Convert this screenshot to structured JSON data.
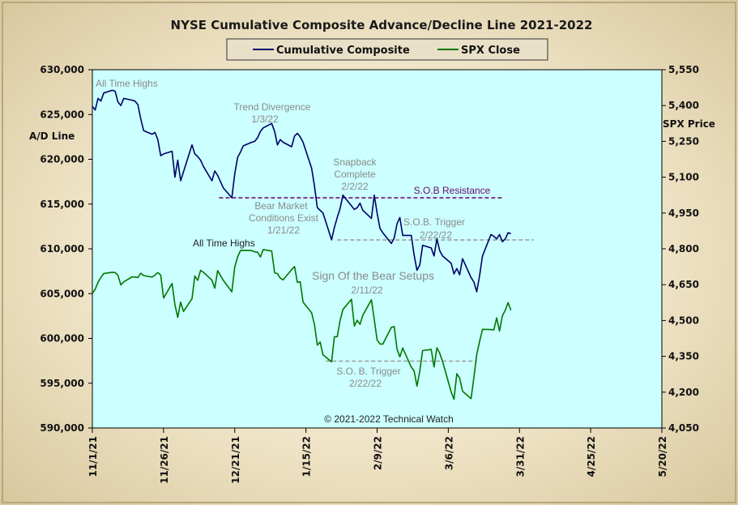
{
  "colors": {
    "plot_bg": "#ccffff",
    "composite": "#000066",
    "spx": "#007700",
    "resistance": "#660066",
    "trigger": "#999999"
  },
  "chart_data": {
    "type": "line",
    "title": "NYSE Cumulative  Composite Advance/Decline  Line 2021-2022",
    "ylabel_left": "A/D Line",
    "ylabel_right": "SPX Price",
    "y_left_range": [
      590000,
      630000
    ],
    "y_left_ticks": [
      "590,000",
      "595,000",
      "600,000",
      "605,000",
      "610,000",
      "615,000",
      "620,000",
      "625,000",
      "630,000"
    ],
    "y_right_range": [
      4050,
      5550
    ],
    "y_right_ticks": [
      "4,050",
      "4,200",
      "4,350",
      "4,500",
      "4,650",
      "4,800",
      "4,950",
      "5,100",
      "5,250",
      "5,400",
      "5,550"
    ],
    "x_tick_labels": [
      "11/1/21",
      "11/26/21",
      "12/21/21",
      "1/15/22",
      "2/9/22",
      "3/6/22",
      "3/31/22",
      "4/25/22",
      "5/20/22"
    ],
    "x_tick_days": [
      0,
      25,
      50,
      75,
      100,
      125,
      150,
      175,
      200
    ],
    "x_range_days": [
      0,
      200
    ],
    "legend": [
      "Cumulative Composite",
      "SPX Close"
    ],
    "legend_placement": "top-center",
    "grid": false,
    "copyright": "© 2021-2022  Technical Watch",
    "series": [
      {
        "name": "Cumulative Composite",
        "color": "#000066",
        "axis": "left",
        "points": [
          [
            0,
            625.9
          ],
          [
            1,
            625.5
          ],
          [
            2,
            626.8
          ],
          [
            3,
            626.5
          ],
          [
            4,
            627.4
          ],
          [
            7,
            627.7
          ],
          [
            8,
            627.6
          ],
          [
            9,
            626.4
          ],
          [
            10,
            626.0
          ],
          [
            11,
            626.8
          ],
          [
            14,
            626.6
          ],
          [
            15,
            626.5
          ],
          [
            16,
            626.1
          ],
          [
            17,
            624.5
          ],
          [
            18,
            623.2
          ],
          [
            21,
            622.8
          ],
          [
            22,
            623.0
          ],
          [
            23,
            622.2
          ],
          [
            24,
            620.4
          ],
          [
            25,
            620.6
          ],
          [
            28,
            620.9
          ],
          [
            29,
            618.0
          ],
          [
            30,
            619.9
          ],
          [
            31,
            617.6
          ],
          [
            32,
            618.6
          ],
          [
            35,
            621.6
          ],
          [
            36,
            620.6
          ],
          [
            37,
            620.3
          ],
          [
            38,
            619.9
          ],
          [
            39,
            619.2
          ],
          [
            42,
            617.6
          ],
          [
            43,
            618.7
          ],
          [
            44,
            618.2
          ],
          [
            45,
            617.5
          ],
          [
            46,
            616.8
          ],
          [
            49,
            615.7
          ],
          [
            50,
            618.4
          ],
          [
            51,
            620.2
          ],
          [
            52,
            620.8
          ],
          [
            53,
            621.5
          ],
          [
            56,
            621.9
          ],
          [
            57,
            622.0
          ],
          [
            58,
            622.4
          ],
          [
            59,
            623.1
          ],
          [
            60,
            623.5
          ],
          [
            63,
            624.0
          ],
          [
            64,
            623.1
          ],
          [
            65,
            621.6
          ],
          [
            66,
            622.2
          ],
          [
            67,
            621.9
          ],
          [
            70,
            621.4
          ],
          [
            71,
            622.6
          ],
          [
            72,
            622.9
          ],
          [
            73,
            622.5
          ],
          [
            74,
            621.9
          ],
          [
            77,
            619.0
          ],
          [
            78,
            617.0
          ],
          [
            79,
            614.6
          ],
          [
            80,
            614.3
          ],
          [
            81,
            614.0
          ],
          [
            84,
            611.0
          ],
          [
            85,
            612.4
          ],
          [
            86,
            613.5
          ],
          [
            87,
            614.5
          ],
          [
            88,
            616.0
          ],
          [
            91,
            614.8
          ],
          [
            92,
            614.4
          ],
          [
            93,
            614.6
          ],
          [
            94,
            615.1
          ],
          [
            95,
            614.3
          ],
          [
            98,
            613.4
          ],
          [
            99,
            616.0
          ],
          [
            100,
            614.0
          ],
          [
            101,
            612.3
          ],
          [
            102,
            611.8
          ],
          [
            105,
            610.6
          ],
          [
            106,
            611.2
          ],
          [
            107,
            612.8
          ],
          [
            108,
            613.5
          ],
          [
            109,
            611.5
          ],
          [
            112,
            611.5
          ],
          [
            113,
            609.3
          ],
          [
            114,
            607.6
          ],
          [
            115,
            608.2
          ],
          [
            116,
            610.4
          ],
          [
            119,
            610.1
          ],
          [
            120,
            609.2
          ],
          [
            121,
            611.1
          ],
          [
            122,
            609.8
          ],
          [
            123,
            609.2
          ],
          [
            126,
            608.4
          ],
          [
            127,
            607.2
          ],
          [
            128,
            607.8
          ],
          [
            129,
            607.1
          ],
          [
            130,
            608.9
          ],
          [
            133,
            606.8
          ],
          [
            134,
            606.3
          ],
          [
            135,
            605.2
          ],
          [
            136,
            607.0
          ],
          [
            137,
            609.2
          ],
          [
            140,
            611.6
          ],
          [
            141,
            611.4
          ],
          [
            142,
            611.1
          ],
          [
            143,
            611.6
          ],
          [
            144,
            610.8
          ],
          [
            145,
            611.1
          ],
          [
            146,
            611.8
          ],
          [
            147,
            611.7
          ]
        ]
      },
      {
        "name": "SPX Close",
        "color": "#007700",
        "axis": "right",
        "points": [
          [
            0,
            4613
          ],
          [
            1,
            4631
          ],
          [
            2,
            4660
          ],
          [
            3,
            4680
          ],
          [
            4,
            4697
          ],
          [
            7,
            4702
          ],
          [
            8,
            4701
          ],
          [
            9,
            4689
          ],
          [
            10,
            4649
          ],
          [
            11,
            4662
          ],
          [
            14,
            4683
          ],
          [
            15,
            4682
          ],
          [
            16,
            4680
          ],
          [
            17,
            4698
          ],
          [
            18,
            4688
          ],
          [
            21,
            4682
          ],
          [
            22,
            4690
          ],
          [
            23,
            4701
          ],
          [
            24,
            4690
          ],
          [
            25,
            4594
          ],
          [
            28,
            4655
          ],
          [
            29,
            4567
          ],
          [
            30,
            4513
          ],
          [
            31,
            4577
          ],
          [
            32,
            4538
          ],
          [
            35,
            4591
          ],
          [
            36,
            4686
          ],
          [
            37,
            4668
          ],
          [
            38,
            4710
          ],
          [
            39,
            4702
          ],
          [
            42,
            4669
          ],
          [
            43,
            4635
          ],
          [
            44,
            4709
          ],
          [
            45,
            4688
          ],
          [
            46,
            4668
          ],
          [
            49,
            4620
          ],
          [
            50,
            4725
          ],
          [
            51,
            4766
          ],
          [
            52,
            4793
          ],
          [
            53,
            4794
          ],
          [
            56,
            4793
          ],
          [
            57,
            4787
          ],
          [
            58,
            4786
          ],
          [
            59,
            4766
          ],
          [
            60,
            4797
          ],
          [
            63,
            4791
          ],
          [
            64,
            4700
          ],
          [
            65,
            4696
          ],
          [
            66,
            4677
          ],
          [
            67,
            4670
          ],
          [
            70,
            4713
          ],
          [
            71,
            4726
          ],
          [
            72,
            4659
          ],
          [
            73,
            4662
          ],
          [
            74,
            4577
          ],
          [
            77,
            4532
          ],
          [
            78,
            4483
          ],
          [
            79,
            4397
          ],
          [
            80,
            4410
          ],
          [
            81,
            4356
          ],
          [
            84,
            4327
          ],
          [
            85,
            4432
          ],
          [
            86,
            4432
          ],
          [
            87,
            4500
          ],
          [
            88,
            4546
          ],
          [
            91,
            4589
          ],
          [
            92,
            4477
          ],
          [
            93,
            4501
          ],
          [
            94,
            4484
          ],
          [
            95,
            4522
          ],
          [
            98,
            4587
          ],
          [
            99,
            4504
          ],
          [
            100,
            4419
          ],
          [
            101,
            4402
          ],
          [
            102,
            4401
          ],
          [
            105,
            4471
          ],
          [
            106,
            4475
          ],
          [
            107,
            4380
          ],
          [
            108,
            4348
          ],
          [
            109,
            4385
          ],
          [
            112,
            4305
          ],
          [
            113,
            4289
          ],
          [
            114,
            4225
          ],
          [
            115,
            4288
          ],
          [
            116,
            4374
          ],
          [
            119,
            4379
          ],
          [
            120,
            4306
          ],
          [
            121,
            4386
          ],
          [
            122,
            4363
          ],
          [
            123,
            4329
          ],
          [
            126,
            4201
          ],
          [
            127,
            4170
          ],
          [
            128,
            4277
          ],
          [
            129,
            4259
          ],
          [
            130,
            4204
          ],
          [
            133,
            4173
          ],
          [
            134,
            4262
          ],
          [
            135,
            4358
          ],
          [
            136,
            4412
          ],
          [
            137,
            4463
          ],
          [
            140,
            4462
          ],
          [
            141,
            4461
          ],
          [
            142,
            4511
          ],
          [
            143,
            4456
          ],
          [
            144,
            4520
          ],
          [
            145,
            4543
          ],
          [
            146,
            4575
          ],
          [
            147,
            4543
          ]
        ]
      }
    ],
    "reference_lines": [
      {
        "label": "S.O.B Resistance",
        "axis": "left",
        "y": 615.7,
        "x_start": 44.5,
        "x_end": 144.5,
        "color": "#660066"
      },
      {
        "label": "A/D S.O.B. Trigger",
        "axis": "left",
        "y": 611.0,
        "x_start": 86,
        "x_end": 155,
        "color": "#999999"
      },
      {
        "label": "SPX S.O.B. Trigger",
        "axis": "right",
        "y": 4330,
        "x_start": 82,
        "x_end": 135,
        "color": "#999999"
      }
    ],
    "annotations": [
      {
        "text": "All Time Highs",
        "near": "composite-peak"
      },
      {
        "text": "Trend  Divergence",
        "near": "composite-jan"
      },
      {
        "text": "1/3/22",
        "near": "composite-jan"
      },
      {
        "text": "Bear Market",
        "near": "composite-late-jan"
      },
      {
        "text": "Conditions  Exist",
        "near": "composite-late-jan"
      },
      {
        "text": "1/21/22",
        "near": "composite-late-jan"
      },
      {
        "text": "Snapback",
        "near": "composite-feb"
      },
      {
        "text": "Complete",
        "near": "composite-feb"
      },
      {
        "text": "2/2/22",
        "near": "composite-feb"
      },
      {
        "text": "S.O.B.  Trigger",
        "near": "composite-feb-trigger"
      },
      {
        "text": "2/22/22",
        "near": "composite-feb-trigger"
      },
      {
        "text": "All Time  Highs",
        "near": "spx-peak"
      },
      {
        "text": "Sign Of the Bear Setups",
        "near": "middle"
      },
      {
        "text": "2/11/22",
        "near": "middle"
      },
      {
        "text": "S.O. B.  Trigger",
        "near": "spx-feb-trigger"
      },
      {
        "text": "2/22/22",
        "near": "spx-feb-trigger"
      }
    ]
  }
}
